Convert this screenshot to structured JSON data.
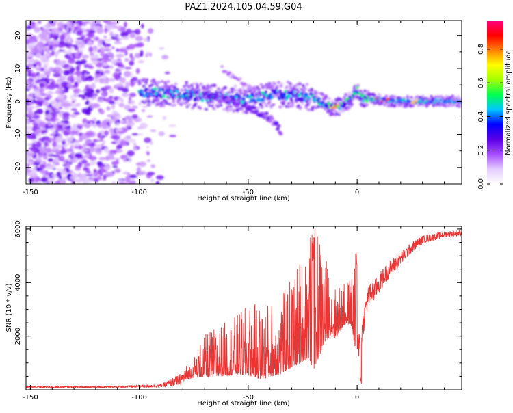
{
  "title": "PAZ1.2024.105.04.59.G04",
  "chart_data": [
    {
      "type": "heatmap",
      "xlabel": "Height of straight line (km)",
      "ylabel": "Frequency (Hz)",
      "xlim": [
        -152,
        48
      ],
      "ylim": [
        -25,
        24.5
      ],
      "x_ticks": [
        -150,
        -100,
        -50,
        0
      ],
      "y_ticks": [
        -20,
        -10,
        0,
        10,
        20
      ],
      "colorbar": {
        "label": "Normalized spectral amplitude",
        "range": [
          0,
          0.97
        ],
        "ticks": [
          0.0,
          0.2,
          0.4,
          0.6,
          0.8
        ],
        "tick_labels": [
          "0.0",
          "0.2",
          "0.4",
          "0.6",
          "0.8"
        ],
        "colormap": [
          "#ffffff",
          "#e4ccff",
          "#a64dff",
          "#5a00e6",
          "#0000ff",
          "#00c8ff",
          "#00ff50",
          "#a0ff00",
          "#ffff00",
          "#ff8000",
          "#ff0000",
          "#ff0080"
        ]
      },
      "ridge": {
        "x": [
          -100,
          -90,
          -80,
          -70,
          -60,
          -50,
          -40,
          -30,
          -20,
          -12,
          -8,
          -3,
          0,
          2,
          10,
          20,
          30,
          48
        ],
        "frequency": [
          3,
          2.5,
          2,
          1.5,
          1,
          0.5,
          2,
          2,
          1,
          -1.5,
          -1.5,
          0.5,
          3.5,
          1,
          0.5,
          0,
          0,
          0
        ]
      },
      "branch": {
        "x": [
          -70,
          -60,
          -50,
          -40,
          -35
        ],
        "frequency": [
          2,
          0,
          -2,
          -5,
          -9
        ]
      },
      "grid": false
    },
    {
      "type": "line",
      "xlabel": "Height of straight line (km)",
      "ylabel": "SNR (10 * v/v)",
      "xlim": [
        -152,
        48
      ],
      "ylim": [
        0,
        6100
      ],
      "x_ticks": [
        -150,
        -100,
        -50,
        0
      ],
      "y_ticks": [
        2000,
        4000,
        6000
      ],
      "series": [
        {
          "color": "#ee3333",
          "envelope": {
            "x": [
              -152,
              -110,
              -90,
              -82,
              -76,
              -72,
              -68,
              -62,
              -56,
              -50,
              -44,
              -40,
              -35,
              -30,
              -25,
              -22,
              -20,
              -18,
              -15,
              -12,
              -10,
              -6,
              -3,
              -1,
              0,
              1,
              2,
              3,
              5,
              8,
              12,
              15,
              20,
              25,
              30,
              35,
              40,
              48
            ],
            "mean": [
              100,
              110,
              150,
              350,
              600,
              800,
              900,
              1000,
              1100,
              1200,
              1100,
              1200,
              1300,
              1700,
              2100,
              2400,
              2000,
              2400,
              2600,
              2600,
              2400,
              2800,
              2900,
              2500,
              1500,
              1800,
              2000,
              2600,
              3500,
              3700,
              4200,
              4500,
              4900,
              5300,
              5600,
              5700,
              5800,
              5850
            ],
            "spread": [
              40,
              45,
              60,
              200,
              300,
              600,
              800,
              900,
              1000,
              1200,
              1300,
              1300,
              1300,
              1600,
              1900,
              2200,
              2400,
              2300,
              1600,
              1000,
              900,
              700,
              800,
              1600,
              600,
              500,
              400,
              500,
              400,
              400,
              350,
              300,
              250,
              200,
              150,
              130,
              110,
              100
            ]
          }
        }
      ],
      "grid": false
    }
  ]
}
